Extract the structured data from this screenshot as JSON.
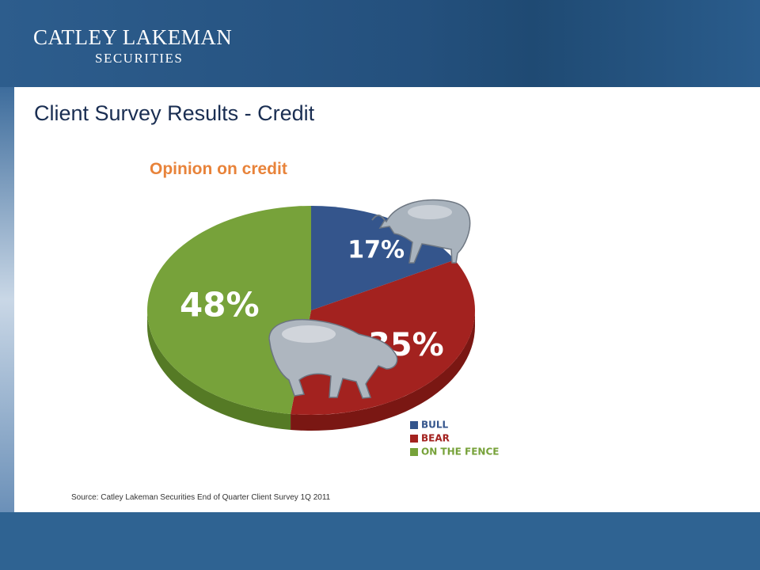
{
  "header": {
    "brand_name": "CATLEY LAKEMAN",
    "brand_sub": "SECURITIES"
  },
  "slide": {
    "title": "Client Survey Results - Credit",
    "source": "Source: Catley Lakeman Securities End of Quarter Client Survey 1Q 2011"
  },
  "chart_data": {
    "type": "pie",
    "title": "Opinion on credit",
    "legend_position": "bottom-right",
    "slices": [
      {
        "label": "BULL",
        "value": 17,
        "display": "17%",
        "color": "#34558c",
        "side_color": "#233c66"
      },
      {
        "label": "BEAR",
        "value": 35,
        "display": "35%",
        "color": "#a3221f",
        "side_color": "#7a1713"
      },
      {
        "label": "ON THE FENCE",
        "value": 48,
        "display": "48%",
        "color": "#77a23a",
        "side_color": "#557a25"
      }
    ],
    "label_color": "#ffffff",
    "bull_label_color": "#ffffff"
  }
}
